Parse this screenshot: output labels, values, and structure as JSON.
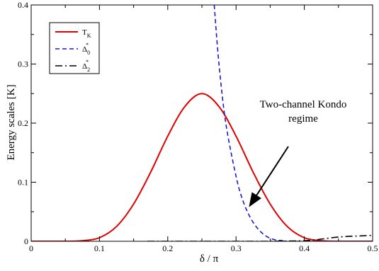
{
  "chart_data": {
    "type": "line",
    "title": "",
    "xlabel": "δ / π",
    "ylabel": "Energy scales [K]",
    "xlim": [
      0,
      0.5
    ],
    "ylim": [
      0,
      0.4
    ],
    "grid": false,
    "legend_placement": "top-left",
    "x_ticks": [
      "0",
      "0.1",
      "0.2",
      "0.3",
      "0.4",
      "0.5"
    ],
    "y_ticks": [
      "0",
      "0.1",
      "0.2",
      "0.3",
      "0.4"
    ],
    "series": [
      {
        "name": "T_K",
        "legend": {
          "main": "T",
          "sub": "K",
          "sup": ""
        },
        "color": "#e00000",
        "style": "solid",
        "x": [
          0,
          0.05,
          0.075,
          0.1,
          0.125,
          0.15,
          0.175,
          0.2,
          0.225,
          0.25,
          0.275,
          0.3,
          0.325,
          0.35,
          0.375,
          0.4,
          0.425,
          0.45,
          0.5
        ],
        "y": [
          0,
          0,
          0.001,
          0.006,
          0.025,
          0.063,
          0.117,
          0.178,
          0.228,
          0.25,
          0.228,
          0.178,
          0.117,
          0.063,
          0.025,
          0.006,
          0.001,
          0,
          0
        ]
      },
      {
        "name": "Δ0*",
        "legend": {
          "main": "Δ",
          "sub": "0",
          "sup": "*"
        },
        "color": "#1a1acc",
        "style": "dashed",
        "x": [
          0.268,
          0.275,
          0.285,
          0.3,
          0.31,
          0.32,
          0.33,
          0.34,
          0.35,
          0.36,
          0.37,
          0.38,
          0.5
        ],
        "y": [
          0.4,
          0.3,
          0.2,
          0.11,
          0.069,
          0.042,
          0.024,
          0.012,
          0.005,
          0.002,
          0.001,
          0,
          0
        ]
      },
      {
        "name": "Δ2*",
        "legend": {
          "main": "Δ",
          "sub": "2",
          "sup": "*"
        },
        "color": "#000000",
        "style": "dashdot",
        "x": [
          0.17,
          0.25,
          0.3,
          0.35,
          0.4,
          0.42,
          0.44,
          0.46,
          0.48,
          0.5
        ],
        "y": [
          0,
          0,
          0,
          0,
          0.001,
          0.003,
          0.006,
          0.008,
          0.009,
          0.01
        ]
      }
    ],
    "annotation": {
      "lines": [
        "Two-channel Kondo",
        "regime"
      ],
      "arrow_to": [
        0.32,
        0.06
      ]
    }
  }
}
